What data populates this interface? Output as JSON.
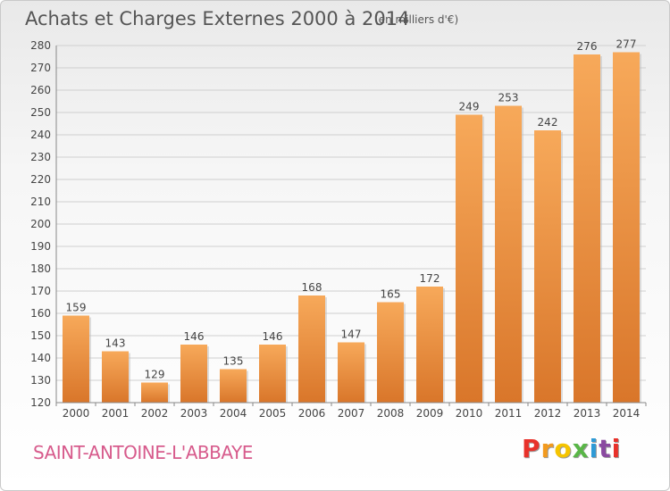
{
  "header": {
    "title": "Achats et Charges Externes 2000 à 2014",
    "unit": "(en milliers d'€)"
  },
  "footer": {
    "commune": "SAINT-ANTOINE-L'ABBAYE",
    "logo_letters": [
      "P",
      "r",
      "o",
      "x",
      "i",
      "t",
      "i"
    ],
    "logo_colors": [
      "#e8312a",
      "#f29a1e",
      "#f5c400",
      "#59b647",
      "#2e9ad6",
      "#8a4aa0",
      "#e8312a"
    ]
  },
  "chart_data": {
    "type": "bar",
    "categories": [
      "2000",
      "2001",
      "2002",
      "2003",
      "2004",
      "2005",
      "2006",
      "2007",
      "2008",
      "2009",
      "2010",
      "2011",
      "2012",
      "2013",
      "2014"
    ],
    "values": [
      159,
      143,
      129,
      146,
      135,
      146,
      168,
      147,
      165,
      172,
      249,
      253,
      242,
      276,
      277
    ],
    "ylim": [
      120,
      280
    ],
    "yticks": [
      120,
      130,
      140,
      150,
      160,
      170,
      180,
      190,
      200,
      210,
      220,
      230,
      240,
      250,
      260,
      270,
      280
    ],
    "grid": true,
    "bar_color_light": "#f7a95a",
    "bar_color_dark": "#d9762a"
  }
}
